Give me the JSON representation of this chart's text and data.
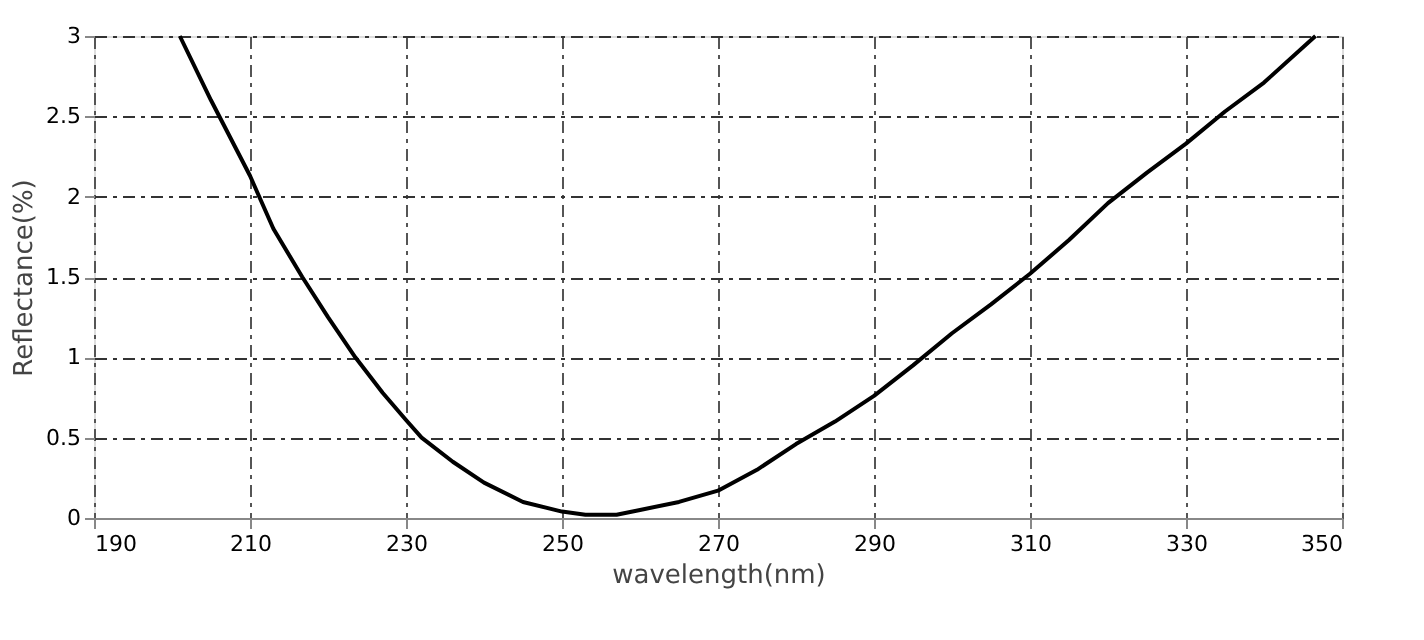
{
  "chart_data": {
    "type": "line",
    "xlabel": "wavelength(nm)",
    "ylabel": "Reflectance(%)",
    "x": [
      201,
      205,
      210,
      213,
      216.7,
      220,
      223.5,
      227,
      230,
      232,
      236,
      240,
      245,
      250,
      253,
      257,
      260,
      265,
      270,
      275,
      280,
      285,
      290,
      295,
      300,
      305,
      310,
      315,
      320,
      325,
      330,
      335,
      340,
      346.6
    ],
    "series": [
      {
        "color": "#000000",
        "values": [
          3,
          2.6,
          2.13,
          1.8,
          1.5,
          1.25,
          1.0,
          0.78,
          0.61,
          0.5,
          0.35,
          0.22,
          0.1,
          0.04,
          0.02,
          0.02,
          0.05,
          0.1,
          0.17,
          0.3,
          0.46,
          0.6,
          0.76,
          0.95,
          1.15,
          1.33,
          1.52,
          1.73,
          1.96,
          2.15,
          2.33,
          2.53,
          2.71,
          3
        ]
      }
    ],
    "xlim": [
      190,
      350
    ],
    "xticks": [
      190,
      210,
      230,
      250,
      270,
      290,
      310,
      330,
      350
    ],
    "ylim": [
      0,
      3
    ],
    "yticks": [
      0,
      0.5,
      1,
      1.5,
      2,
      2.5,
      3
    ],
    "grid": true,
    "marker": "none",
    "line_style": "solid"
  }
}
